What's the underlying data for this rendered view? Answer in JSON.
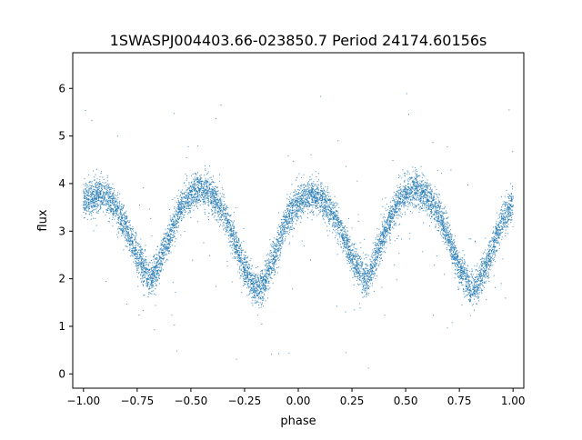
{
  "chart_data": {
    "type": "scatter",
    "title": "1SWASPJ004403.66-023850.7 Period 24174.60156s",
    "xlabel": "phase",
    "ylabel": "flux",
    "xlim": [
      -1.05,
      1.05
    ],
    "ylim": [
      -0.3,
      6.75
    ],
    "x_ticks": [
      -1.0,
      -0.75,
      -0.5,
      -0.25,
      0.0,
      0.25,
      0.5,
      0.75,
      1.0
    ],
    "x_tick_labels": [
      "−1.00",
      "−0.75",
      "−0.50",
      "−0.25",
      "0.00",
      "0.25",
      "0.50",
      "0.75",
      "1.00"
    ],
    "y_ticks": [
      0,
      1,
      2,
      3,
      4,
      5,
      6
    ],
    "y_tick_labels": [
      "0",
      "1",
      "2",
      "3",
      "4",
      "5",
      "6"
    ],
    "grid": false,
    "legend": "none",
    "marker_color": "#1f77b4",
    "curve": {
      "x": [
        -1.0,
        -0.95,
        -0.9,
        -0.85,
        -0.8,
        -0.75,
        -0.7,
        -0.68,
        -0.65,
        -0.6,
        -0.55,
        -0.5,
        -0.45,
        -0.4,
        -0.35,
        -0.3,
        -0.25,
        -0.2,
        -0.18,
        -0.15,
        -0.1,
        -0.05,
        0.0,
        0.05,
        0.1,
        0.15,
        0.2,
        0.25,
        0.3,
        0.32,
        0.35,
        0.4,
        0.45,
        0.5,
        0.55,
        0.6,
        0.65,
        0.7,
        0.75,
        0.8,
        0.82,
        0.85,
        0.9,
        0.95,
        1.0
      ],
      "y": [
        3.6,
        3.75,
        3.75,
        3.5,
        3.05,
        2.5,
        2.05,
        2.0,
        2.3,
        2.9,
        3.5,
        3.8,
        3.9,
        3.75,
        3.4,
        2.85,
        2.2,
        1.8,
        1.78,
        2.0,
        2.6,
        3.3,
        3.6,
        3.75,
        3.7,
        3.45,
        3.0,
        2.45,
        2.05,
        2.0,
        2.3,
        2.95,
        3.5,
        3.8,
        3.88,
        3.75,
        3.4,
        2.85,
        2.2,
        1.8,
        1.78,
        2.0,
        2.6,
        3.25,
        3.6
      ]
    },
    "scatter_width": 0.18,
    "outlier_fraction": 0.02,
    "n_points": 9000
  }
}
